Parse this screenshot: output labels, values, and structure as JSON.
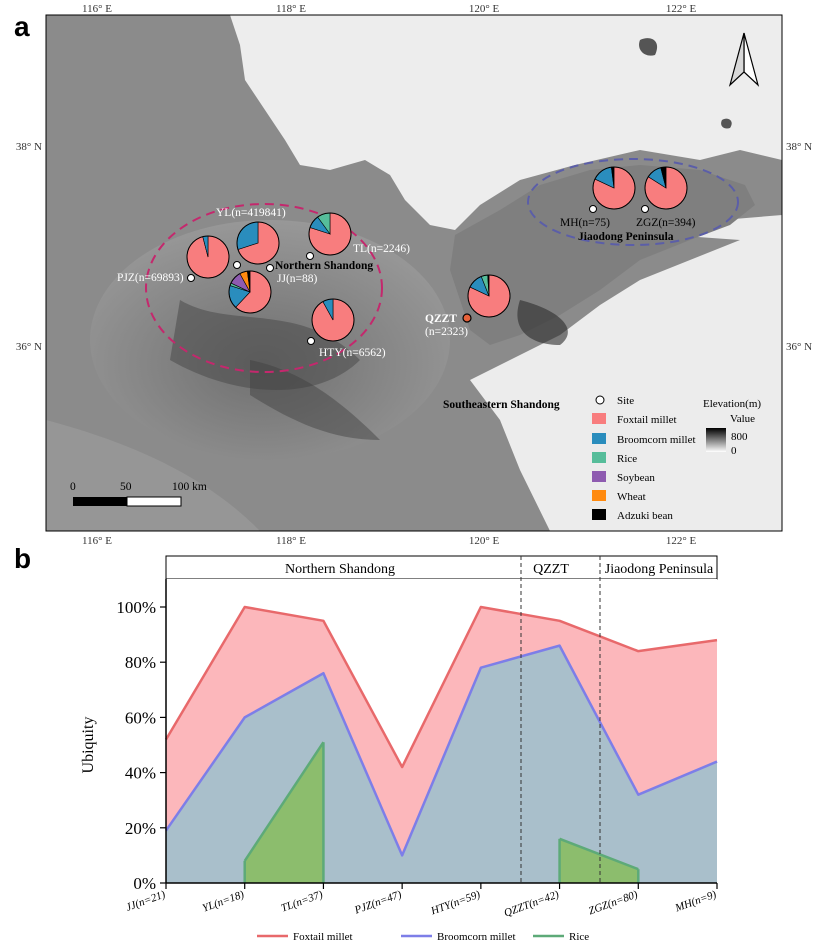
{
  "panel_a": {
    "letter": "a",
    "lon_ticks": [
      "116° E",
      "118° E",
      "120° E",
      "122° E"
    ],
    "lat_ticks": [
      "38° N",
      "36° N"
    ],
    "regions": {
      "northern": "Northern Shandong",
      "jiaodong": "Jiaodong Peninsula",
      "southeast": "Southeastern Shandong",
      "qzzt": "QZZT"
    },
    "sites": [
      {
        "label": "YL(n=419841)",
        "foxtail": 70,
        "broomcorn": 30,
        "rice": 0,
        "soybean": 0,
        "wheat": 0,
        "adzuki": 0
      },
      {
        "label": "PJZ(n=69893)",
        "foxtail": 96,
        "broomcorn": 4,
        "rice": 0,
        "soybean": 0,
        "wheat": 0,
        "adzuki": 0
      },
      {
        "label": "JJ(n=88)",
        "foxtail": 62,
        "broomcorn": 18,
        "rice": 2,
        "soybean": 10,
        "wheat": 6,
        "adzuki": 2
      },
      {
        "label": "TL(n=2246)",
        "foxtail": 80,
        "broomcorn": 10,
        "rice": 10,
        "soybean": 0,
        "wheat": 0,
        "adzuki": 0
      },
      {
        "label": "HTY(n=6562)",
        "foxtail": 92,
        "broomcorn": 8,
        "rice": 0,
        "soybean": 0,
        "wheat": 0,
        "adzuki": 0
      },
      {
        "label": "(n=2323)",
        "foxtail": 82,
        "broomcorn": 12,
        "rice": 5,
        "soybean": 0,
        "wheat": 0,
        "adzuki": 1
      },
      {
        "label": "MH(n=75)",
        "foxtail": 82,
        "broomcorn": 16,
        "rice": 0,
        "soybean": 0,
        "wheat": 0,
        "adzuki": 2
      },
      {
        "label": "ZGZ(n=394)",
        "foxtail": 84,
        "broomcorn": 12,
        "rice": 0,
        "soybean": 0,
        "wheat": 0,
        "adzuki": 4
      }
    ],
    "legend": {
      "site": "Site",
      "items": [
        "Foxtail millet",
        "Broomcorn millet",
        "Rice",
        "Soybean",
        "Wheat",
        "Adzuki bean"
      ],
      "elevation_title": "Elevation(m)",
      "value_label": "Value",
      "elev_max": "800",
      "elev_min": "0"
    },
    "scale": {
      "t0": "0",
      "t1": "50",
      "t2": "100 km"
    },
    "colors": {
      "foxtail": "#f87d7e",
      "broomcorn": "#2a8dbd",
      "rice": "#56bd9a",
      "soybean": "#8e5bb0",
      "wheat": "#ff8a0f",
      "adzuki": "#000000",
      "north_ellipse": "#c4286d",
      "jiaodong_ellipse": "#5b5ea8"
    }
  },
  "panel_b": {
    "letter": "b",
    "strip": {
      "northern": "Northern Shandong",
      "qzzt": "QZZT",
      "jiaodong": "Jiaodong Peninsula"
    },
    "ylabel": "Ubiquity",
    "legend": [
      "Foxtail millet",
      "Broomcorn millet",
      "Rice"
    ]
  },
  "chart_data": {
    "type": "area",
    "categories": [
      "JJ(n=21)",
      "YL(n=18)",
      "TL(n=37)",
      "PJZ(n=47)",
      "HTY(n=59)",
      "QZZT(n=42)",
      "ZGZ(n=80)",
      "MH(n=9)"
    ],
    "ylabel": "Ubiquity",
    "ylim": [
      0,
      100
    ],
    "yticks": [
      "0%",
      "20%",
      "40%",
      "60%",
      "80%",
      "100%"
    ],
    "series": [
      {
        "name": "Foxtail millet",
        "values": [
          52,
          100,
          95,
          42,
          100,
          95,
          84,
          88
        ],
        "color": "#e8696b",
        "fill": "#fcb7bb"
      },
      {
        "name": "Broomcorn millet",
        "values": [
          19,
          60,
          76,
          10,
          78,
          86,
          32,
          44
        ],
        "color": "#7d7ee8",
        "fill": "#a9bfcb"
      },
      {
        "name": "Rice",
        "values": [
          null,
          8,
          51,
          null,
          null,
          16,
          5,
          null
        ],
        "color": "#5daa78",
        "fill": "#8cbd6d"
      }
    ]
  }
}
